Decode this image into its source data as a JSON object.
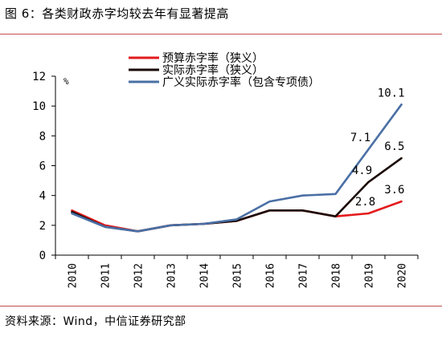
{
  "figure": {
    "title": "图 6：各类财政赤字均较去年有显著提高",
    "source": "资料来源：Wind，中信证券研究部"
  },
  "colors": {
    "rule": "#c0504d",
    "series": [
      "#e31a1c",
      "#1a0a05",
      "#4a6fa5"
    ]
  },
  "chart_data": {
    "type": "line",
    "x": [
      "2010",
      "2011",
      "2012",
      "2013",
      "2014",
      "2015",
      "2016",
      "2017",
      "2018",
      "2019",
      "2020"
    ],
    "ylim": [
      0,
      12
    ],
    "yticks": [
      0,
      2,
      4,
      6,
      8,
      10,
      12
    ],
    "yunit": "%",
    "grid": false,
    "legend_position": "top-center",
    "series": [
      {
        "name": "预算赤字率（狭义）",
        "values": [
          3.0,
          2.0,
          1.6,
          2.0,
          2.1,
          2.3,
          3.0,
          3.0,
          2.6,
          2.8,
          3.6
        ],
        "labels": [
          "",
          "",
          "",
          "",
          "",
          "",
          "",
          "",
          "",
          "2.8",
          "3.6"
        ]
      },
      {
        "name": "实际赤字率（狭义）",
        "values": [
          2.9,
          1.9,
          1.6,
          2.0,
          2.1,
          2.3,
          3.0,
          3.0,
          2.6,
          4.9,
          6.5
        ],
        "labels": [
          "",
          "",
          "",
          "",
          "",
          "",
          "",
          "",
          "",
          "4.9",
          "6.5"
        ]
      },
      {
        "name": "广义实际赤字率（包含专项债）",
        "values": [
          2.8,
          1.9,
          1.6,
          2.0,
          2.1,
          2.4,
          3.6,
          4.0,
          4.1,
          7.1,
          10.1
        ],
        "labels": [
          "",
          "",
          "",
          "",
          "",
          "",
          "",
          "",
          "",
          "7.1",
          "10.1"
        ]
      }
    ]
  }
}
